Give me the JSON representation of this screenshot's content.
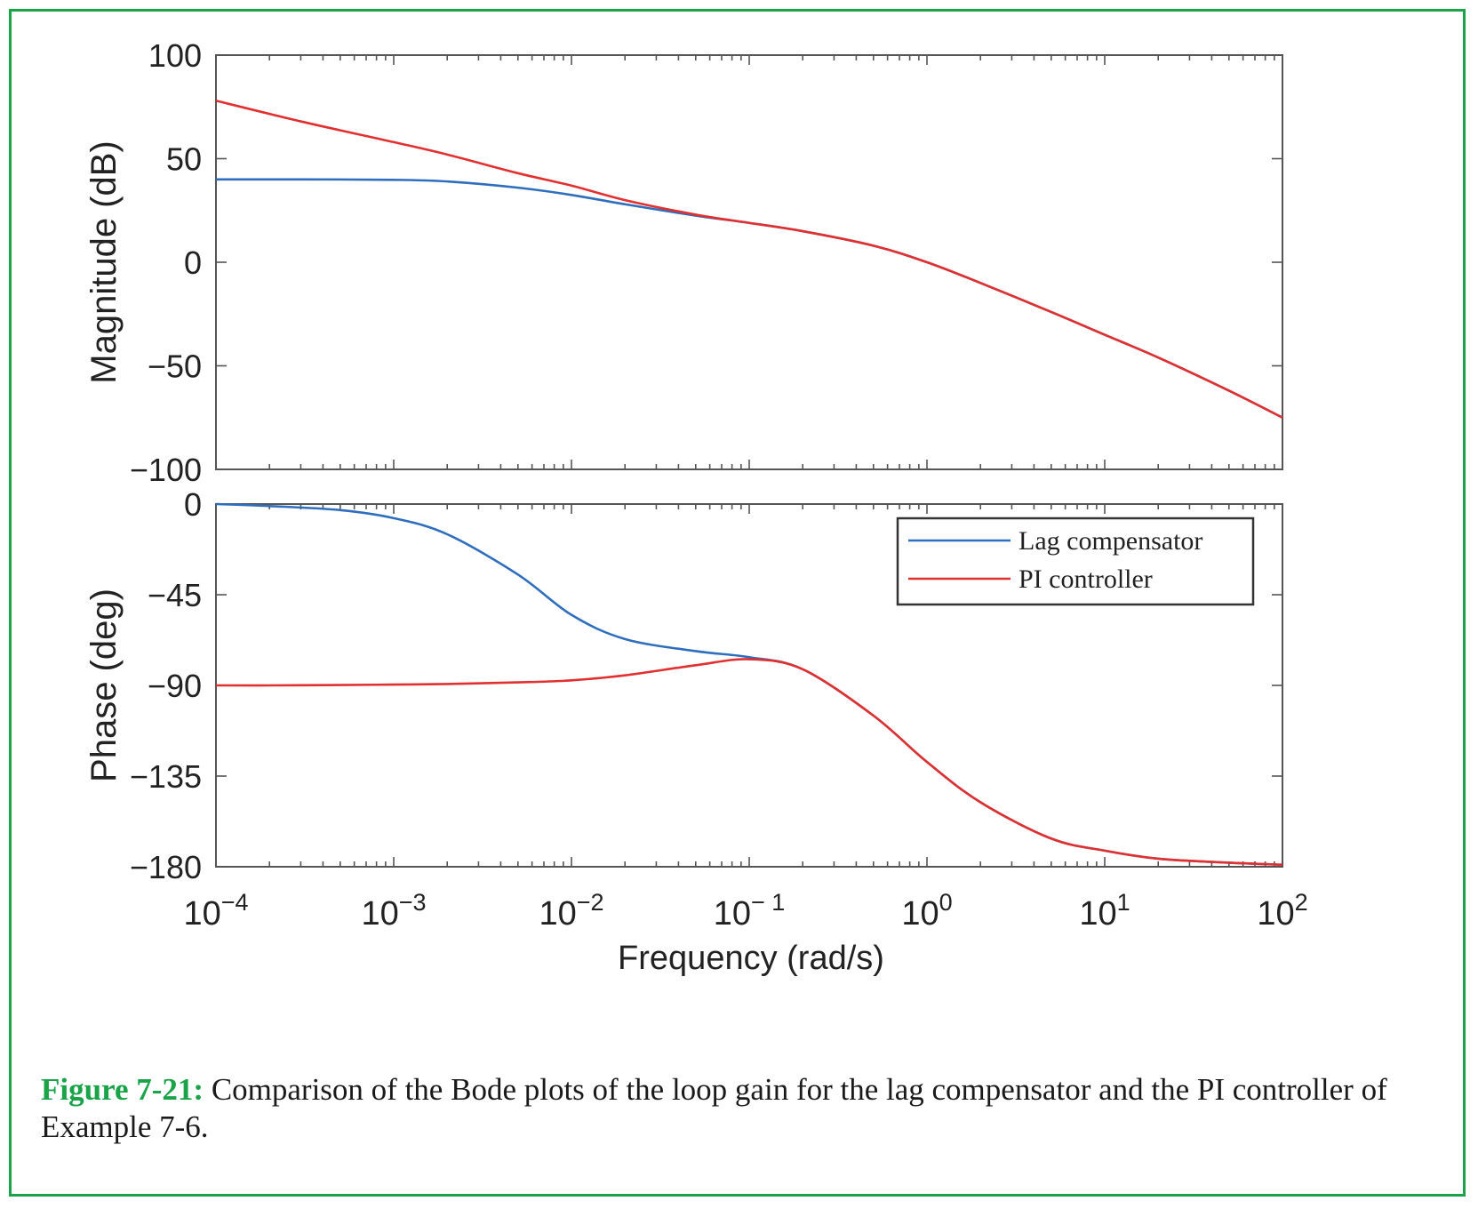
{
  "chart_data": [
    {
      "type": "line",
      "title": "",
      "xlabel": "",
      "ylabel": "Magnitude (dB)",
      "xscale": "log",
      "xlim": [
        0.0001,
        100
      ],
      "ylim": [
        -100,
        100
      ],
      "y_ticks": [
        100,
        50,
        0,
        -50,
        -100
      ],
      "y_tick_labels": [
        "100",
        "50",
        "0",
        "−50",
        "−100"
      ],
      "grid": false,
      "series": [
        {
          "name": "Lag compensator",
          "color": "#2f6ebd",
          "x": [
            0.0001,
            0.0003,
            0.001,
            0.002,
            0.005,
            0.01,
            0.02,
            0.05,
            0.1,
            0.2,
            0.5,
            1,
            2,
            5,
            10,
            20,
            50,
            100
          ],
          "y": [
            40,
            40,
            39.8,
            39,
            36,
            32.5,
            28,
            22.5,
            19,
            15,
            8,
            0,
            -10,
            -24,
            -35,
            -46,
            -62,
            -75
          ]
        },
        {
          "name": "PI controller",
          "color": "#e03030",
          "x": [
            0.0001,
            0.0003,
            0.001,
            0.002,
            0.005,
            0.01,
            0.02,
            0.05,
            0.1,
            0.2,
            0.5,
            1,
            2,
            5,
            10,
            20,
            50,
            100
          ],
          "y": [
            78,
            68,
            58,
            52,
            43,
            37,
            30,
            23,
            19,
            15,
            8,
            0,
            -10,
            -24,
            -35,
            -46,
            -62,
            -75
          ]
        }
      ]
    },
    {
      "type": "line",
      "title": "",
      "xlabel": "Frequency (rad/s)",
      "ylabel": "Phase (deg)",
      "xscale": "log",
      "xlim": [
        0.0001,
        100
      ],
      "ylim": [
        -180,
        0
      ],
      "y_ticks": [
        0,
        -45,
        -90,
        -135,
        -180
      ],
      "y_tick_labels": [
        "0",
        "−45",
        "−90",
        "−135",
        "−180"
      ],
      "x_ticks": [
        -4,
        -3,
        -2,
        -1,
        0,
        1,
        2
      ],
      "x_tick_base": "10",
      "x_tick_exponents": [
        "−4",
        "−3",
        "−2",
        "− 1",
        "0",
        "1",
        "2"
      ],
      "grid": false,
      "legend_position": "top-right",
      "series": [
        {
          "name": "Lag compensator",
          "color": "#2f6ebd",
          "x": [
            0.0001,
            0.0002,
            0.0005,
            0.001,
            0.002,
            0.005,
            0.01,
            0.02,
            0.05,
            0.1,
            0.2,
            0.5,
            1,
            2,
            5,
            10,
            20,
            50,
            100
          ],
          "y": [
            0,
            -1,
            -3,
            -7,
            -15,
            -35,
            -55,
            -67,
            -73,
            -76,
            -82,
            -105,
            -128,
            -148,
            -166,
            -172,
            -176,
            -178,
            -179
          ]
        },
        {
          "name": "PI controller",
          "color": "#e03030",
          "x": [
            0.0001,
            0.0002,
            0.0005,
            0.001,
            0.002,
            0.005,
            0.01,
            0.02,
            0.05,
            0.1,
            0.2,
            0.5,
            1,
            2,
            5,
            10,
            20,
            50,
            100
          ],
          "y": [
            -90,
            -90,
            -89.8,
            -89.6,
            -89.3,
            -88.5,
            -87.5,
            -85,
            -80,
            -77,
            -82,
            -105,
            -128,
            -148,
            -166,
            -172,
            -176,
            -178,
            -179
          ]
        }
      ]
    }
  ],
  "caption": {
    "label": "Figure 7-21:",
    "text": " Comparison of the Bode plots of the loop gain for the lag compensator and the PI controller of Example 7-6."
  }
}
